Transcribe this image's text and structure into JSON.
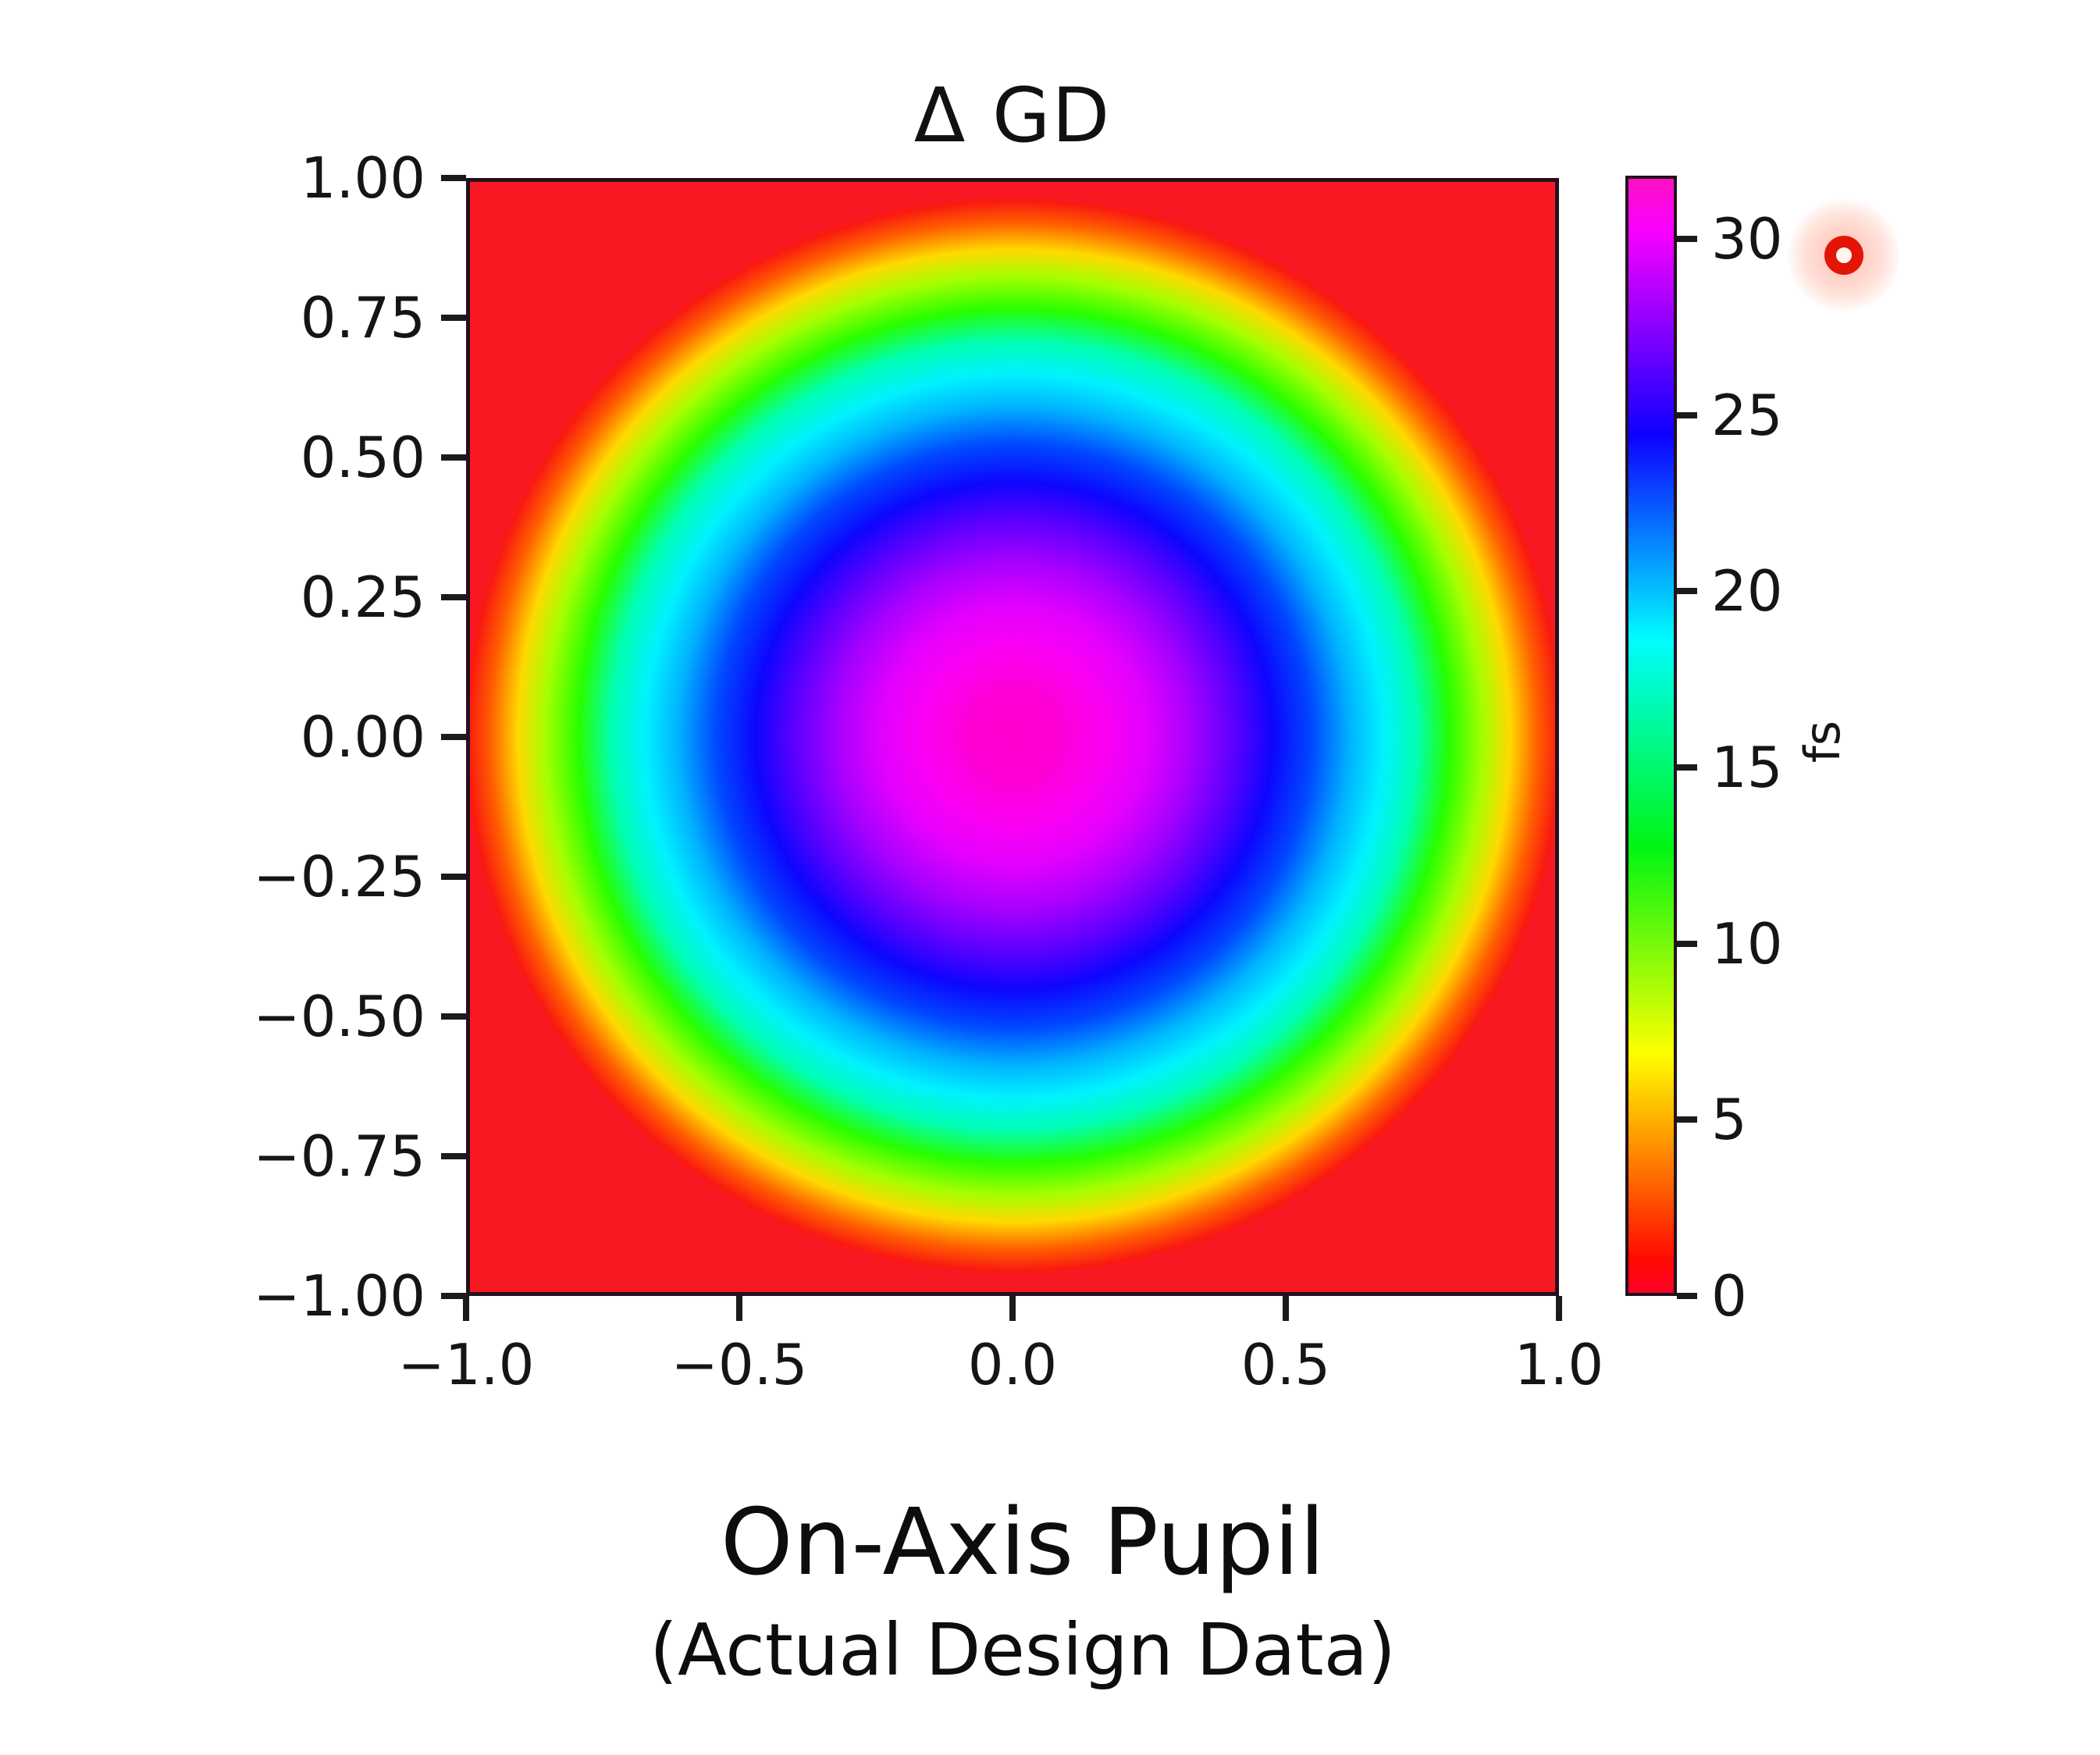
{
  "chart_data": {
    "type": "heatmap",
    "title": "Δ GD",
    "xlabel": "",
    "ylabel": "",
    "x_ticks": [
      "−1.0",
      "−0.5",
      "0.0",
      "0.5",
      "1.0"
    ],
    "x_tick_values": [
      -1.0,
      -0.5,
      0.0,
      0.5,
      1.0
    ],
    "y_ticks": [
      "1.00",
      "0.75",
      "0.50",
      "0.25",
      "0.00",
      "−0.25",
      "−0.50",
      "−0.75",
      "−1.00"
    ],
    "y_tick_values": [
      1.0,
      0.75,
      0.5,
      0.25,
      0.0,
      -0.25,
      -0.5,
      -0.75,
      -1.0
    ],
    "xlim": [
      -1.0,
      1.0
    ],
    "ylim": [
      -1.0,
      1.0
    ],
    "grid": false,
    "legend": "none",
    "colormap": "gist_rainbow",
    "colorbar": {
      "label": "fs",
      "tick_values": [
        0,
        5,
        10,
        15,
        20,
        25,
        30
      ],
      "vmin": 0,
      "vmax": 31.8,
      "gradient_stops": [
        {
          "pos": 0,
          "color": "#ff0029"
        },
        {
          "pos": 3,
          "color": "#ff0a00"
        },
        {
          "pos": 21.5,
          "color": "#fdff00"
        },
        {
          "pos": 40,
          "color": "#00f513"
        },
        {
          "pos": 58.6,
          "color": "#00fdff"
        },
        {
          "pos": 77,
          "color": "#0d00ff"
        },
        {
          "pos": 95.4,
          "color": "#fa00ff"
        },
        {
          "pos": 100,
          "color": "#ff10c4"
        }
      ]
    },
    "field": {
      "description": "Group-delay difference (ΔGD) across the on-axis pupil. Radially symmetric concentric rainbow rings: peak at pupil center, falling to zero at the pupil edge; red (0 fs) fills the region outside the circular pupil including corners.",
      "model": "ΔGD(r) ≈ 31.4 × (1 − r²) fs for r ≤ 1, ≈ 0 fs for r > 1",
      "peak_fs": 31.4,
      "edge_fs": 0,
      "radial_profile": {
        "r": [
          0.0,
          0.1,
          0.2,
          0.3,
          0.4,
          0.5,
          0.6,
          0.7,
          0.8,
          0.9,
          1.0
        ],
        "gd_fs": [
          31.4,
          31.1,
          30.1,
          28.6,
          26.4,
          23.6,
          20.1,
          16.0,
          11.3,
          6.0,
          0.0
        ]
      },
      "radial_gradient_stops": [
        {
          "pos": 0,
          "color": "#ff00cc"
        },
        {
          "pos": 8,
          "color": "#ff00d5"
        },
        {
          "pos": 16,
          "color": "#fc00f2"
        },
        {
          "pos": 24,
          "color": "#e300ff"
        },
        {
          "pos": 32,
          "color": "#a800ff"
        },
        {
          "pos": 40,
          "color": "#5b00ff"
        },
        {
          "pos": 47,
          "color": "#0c06ff"
        },
        {
          "pos": 54,
          "color": "#0048ff"
        },
        {
          "pos": 61,
          "color": "#00b4ff"
        },
        {
          "pos": 67,
          "color": "#00f2ff"
        },
        {
          "pos": 73,
          "color": "#00ffb4"
        },
        {
          "pos": 79,
          "color": "#27ff00"
        },
        {
          "pos": 85,
          "color": "#a4ff00"
        },
        {
          "pos": 90,
          "color": "#ffd900"
        },
        {
          "pos": 95,
          "color": "#ff5f00"
        },
        {
          "pos": 99,
          "color": "#fa1a10"
        },
        {
          "pos": 100,
          "color": "#f81822"
        }
      ],
      "background_color": "#f81822"
    },
    "caption_line1": "On-Axis Pupil",
    "caption_line2": "(Actual Design Data)",
    "axis_color": "#25101f",
    "text_color": "#151515"
  },
  "overlay": {
    "record_icon": {
      "ring_color": "#e31507",
      "glow_color": "#ff8a70"
    }
  }
}
